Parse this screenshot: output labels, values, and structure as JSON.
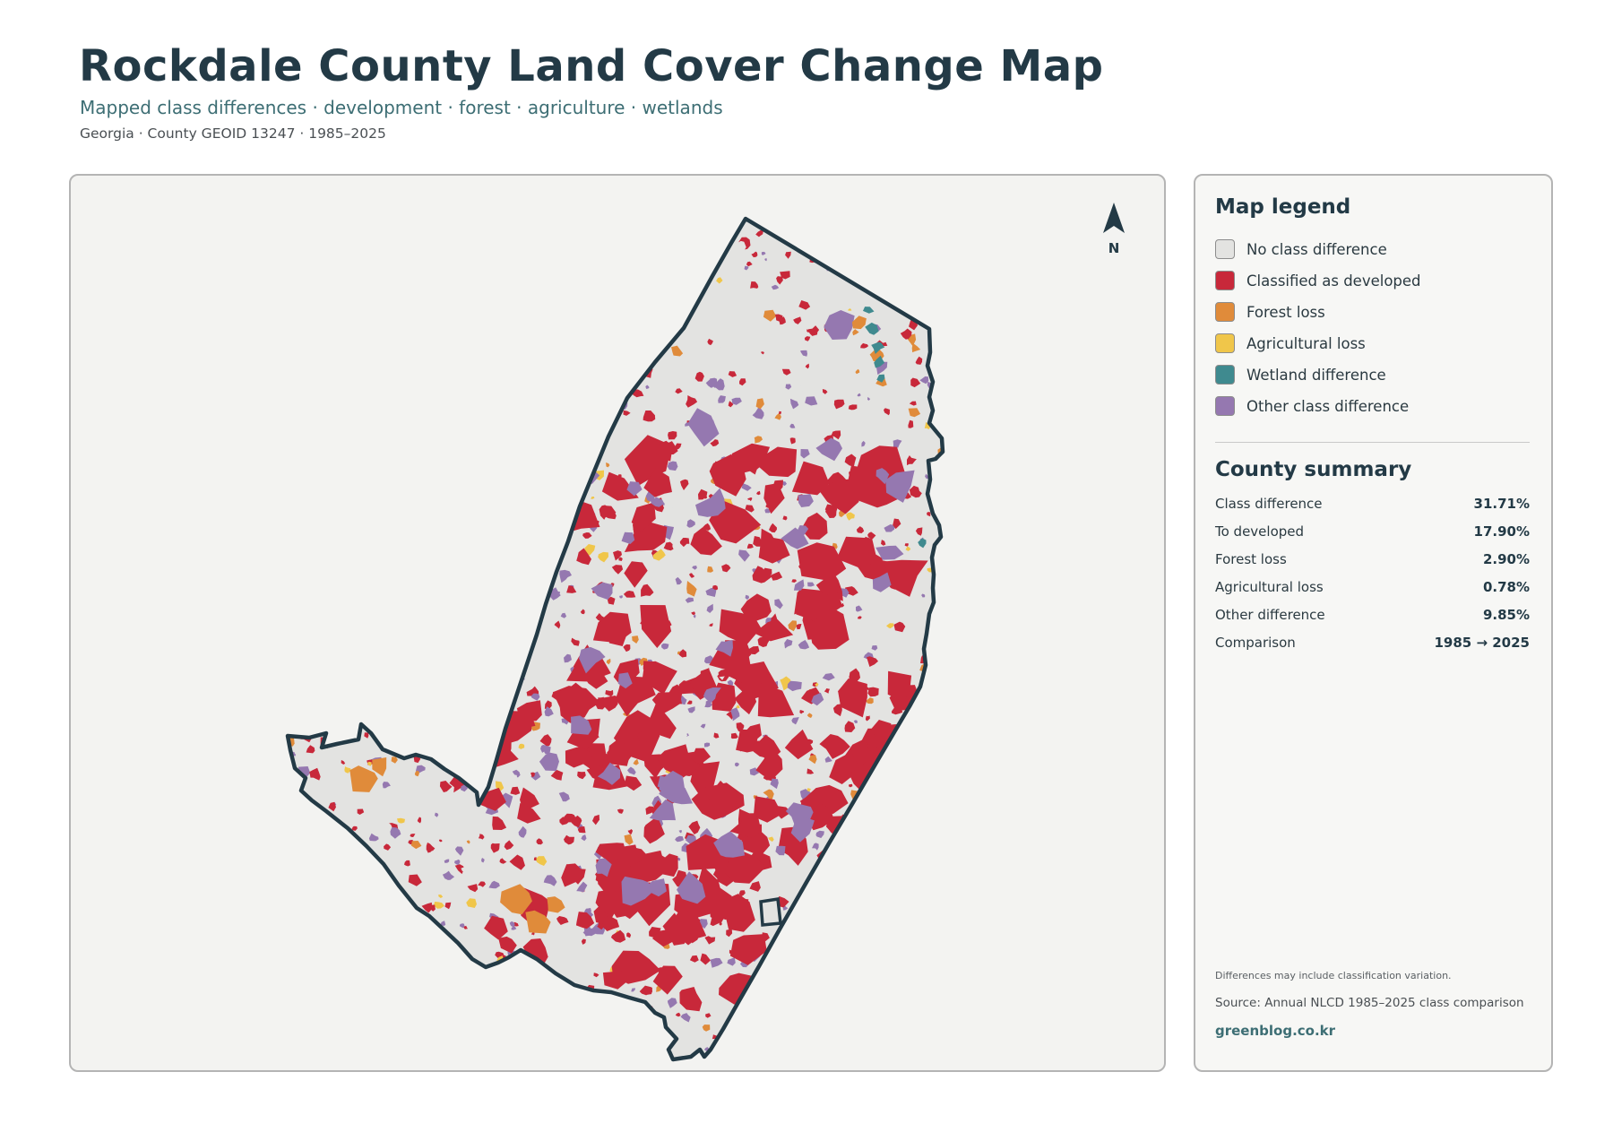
{
  "header": {
    "title": "Rockdale County Land Cover Change Map",
    "subtitle": "Mapped class differences · development · forest · agriculture · wetlands",
    "meta": "Georgia · County GEOID 13247 · 1985–2025"
  },
  "map": {
    "north_label": "N",
    "colors": {
      "background": "#f3f3f1",
      "county_fill": "#e3e3e1",
      "outline": "#233a46",
      "developed": "#c8283a",
      "forest_loss": "#e08b3a",
      "agricultural_loss": "#f0c64a",
      "wetland": "#3f8a8f",
      "other": "#9578b0"
    }
  },
  "legend": {
    "title": "Map legend",
    "items": [
      {
        "label": "No class difference",
        "color": "#e3e3e1"
      },
      {
        "label": "Classified as developed",
        "color": "#c8283a"
      },
      {
        "label": "Forest loss",
        "color": "#e08b3a"
      },
      {
        "label": "Agricultural loss",
        "color": "#f0c64a"
      },
      {
        "label": "Wetland difference",
        "color": "#3f8a8f"
      },
      {
        "label": "Other class difference",
        "color": "#9578b0"
      }
    ]
  },
  "summary": {
    "title": "County summary",
    "rows": [
      {
        "label": "Class difference",
        "value": "31.71%"
      },
      {
        "label": "To developed",
        "value": "17.90%"
      },
      {
        "label": "Forest loss",
        "value": "2.90%"
      },
      {
        "label": "Agricultural loss",
        "value": "0.78%"
      },
      {
        "label": "Other difference",
        "value": "9.85%"
      },
      {
        "label": "Comparison",
        "value": "1985 → 2025"
      }
    ]
  },
  "footer": {
    "note": "Differences may include classification variation.",
    "source": "Source: Annual NLCD 1985–2025 class comparison",
    "credit": "greenblog.co.kr"
  }
}
